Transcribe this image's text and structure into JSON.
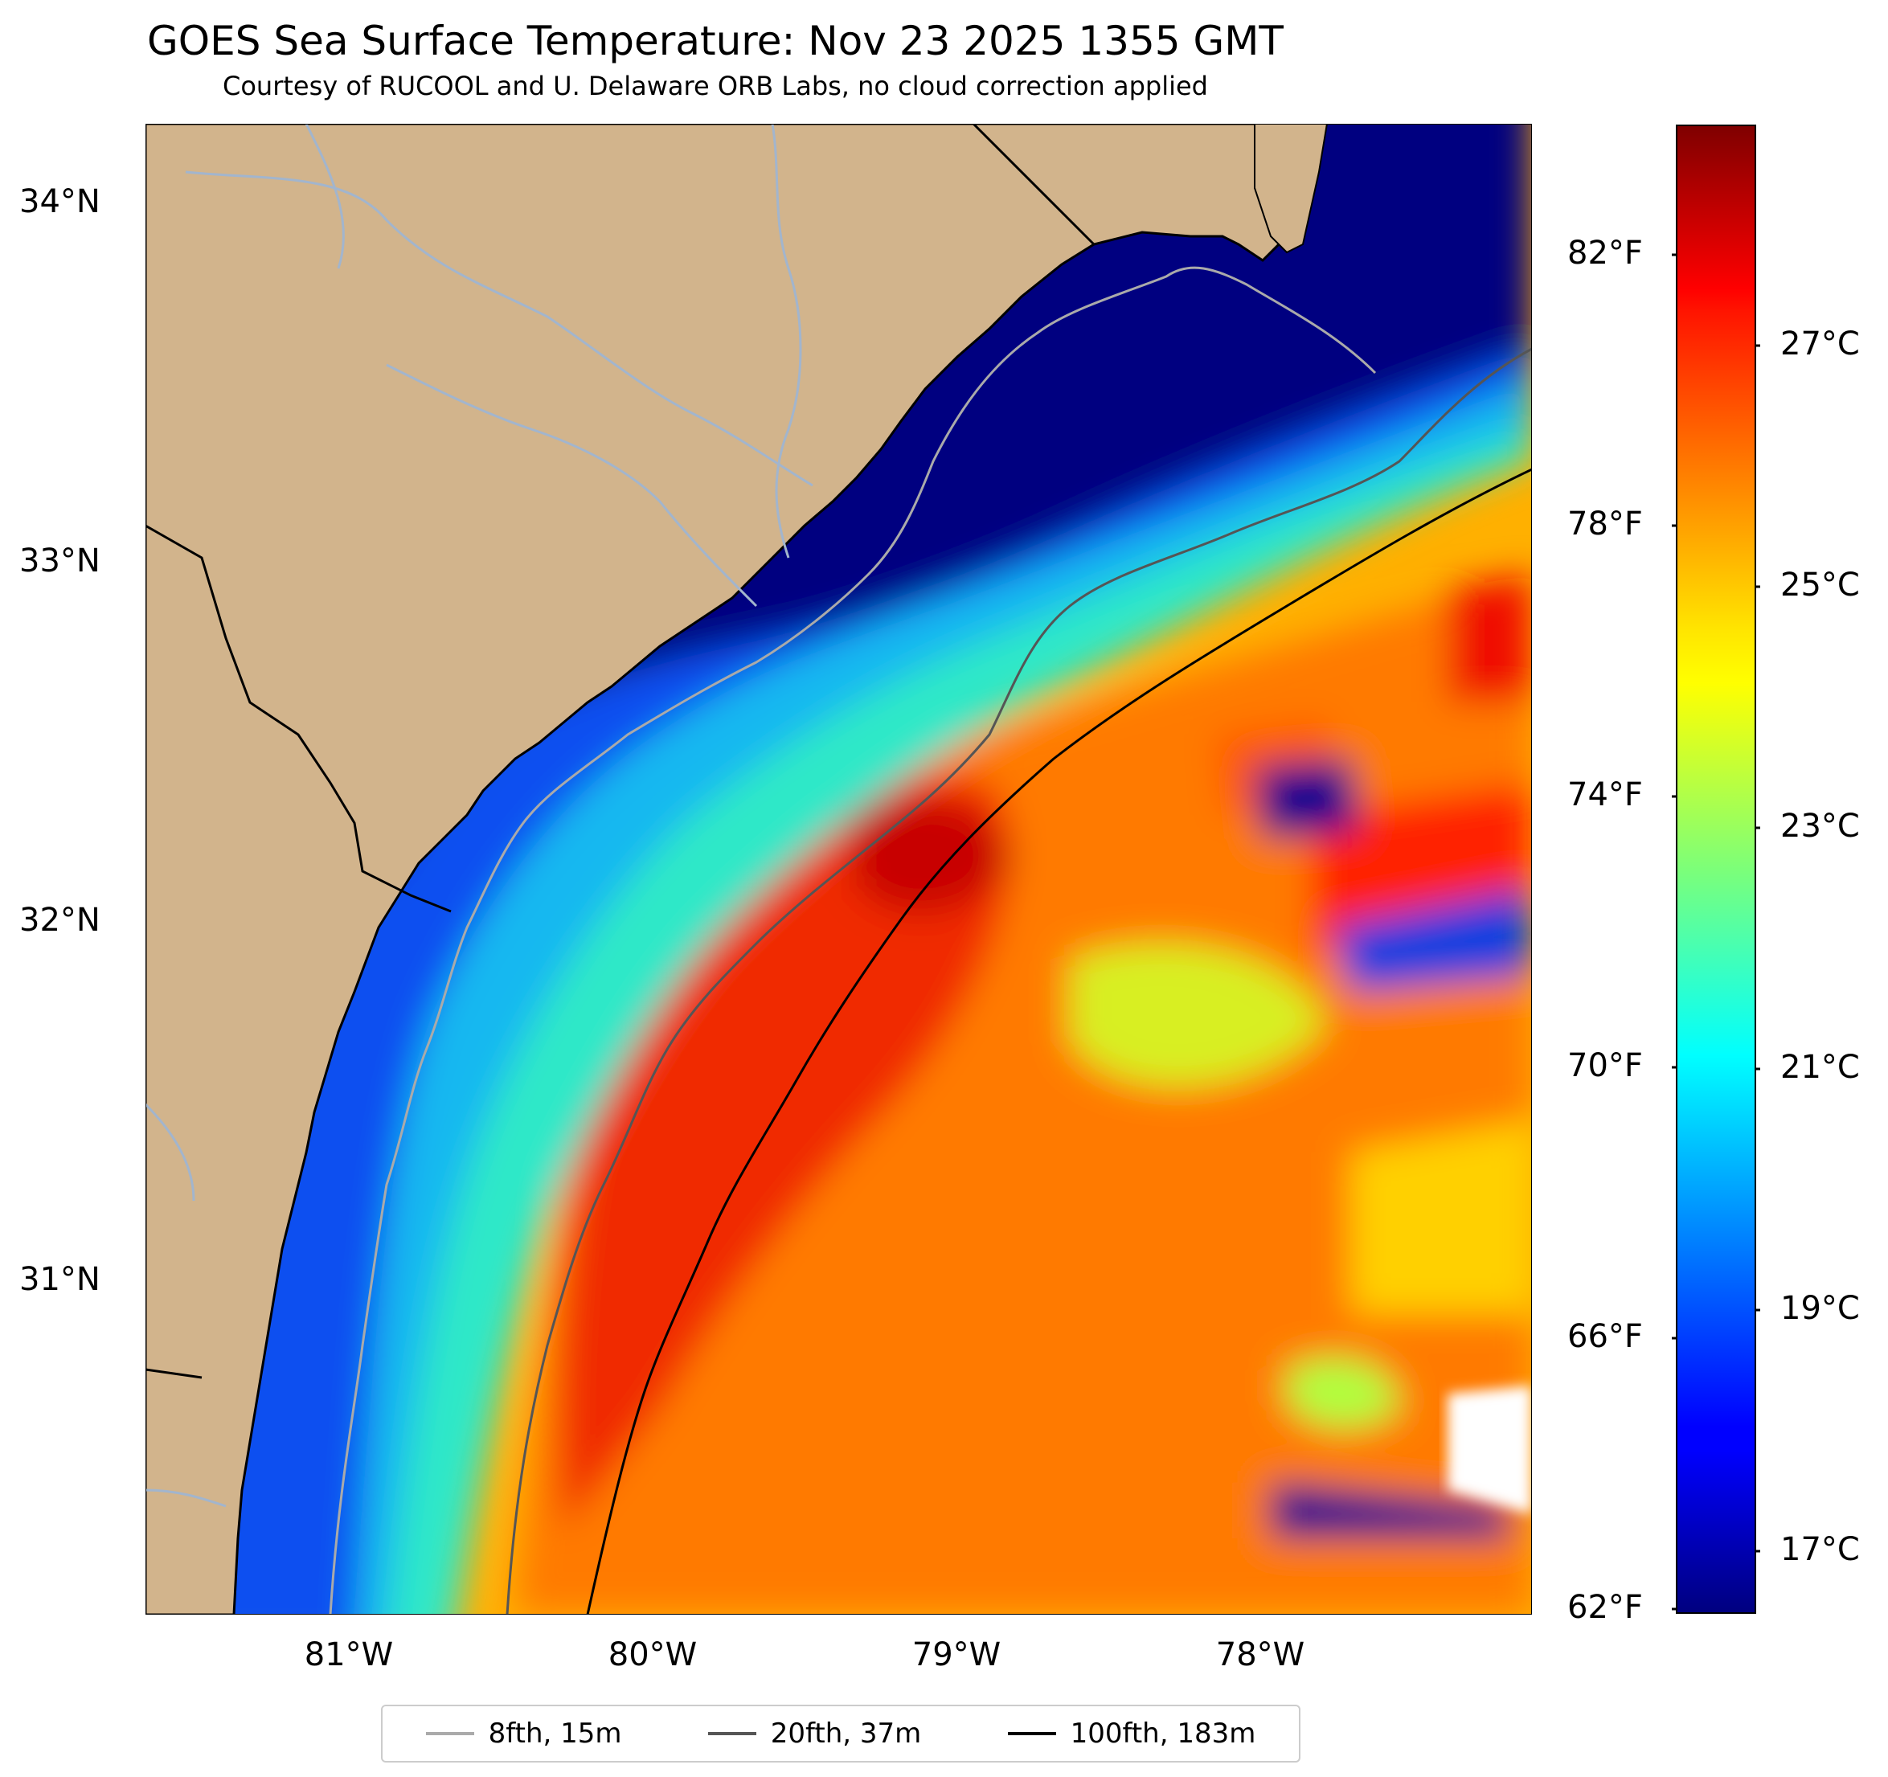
{
  "title": "GOES Sea Surface Temperature: Nov 23 2025 1355 GMT",
  "subtitle": "Courtesy of RUCOOL and U. Delaware ORB Labs, no cloud correction applied",
  "map": {
    "extent": {
      "lon_min": -81.67,
      "lon_max": -77.1,
      "lat_min": 30.1,
      "lat_max": 34.22
    },
    "lon_ticks": [
      "81°W",
      "80°W",
      "79°W",
      "78°W"
    ],
    "lat_ticks": [
      "34°N",
      "33°N",
      "32°N",
      "31°N"
    ],
    "colors": {
      "land": "#d2b48c",
      "rivers": "#a2b5cd",
      "cloud": "#ffffff",
      "state_border": "#000000"
    }
  },
  "colorbar": {
    "celsius_ticks": [
      "27°C",
      "25°C",
      "23°C",
      "21°C",
      "19°C",
      "17°C"
    ],
    "fahrenheit_ticks": [
      "82°F",
      "78°F",
      "74°F",
      "70°F",
      "66°F",
      "62°F"
    ],
    "range_c": [
      16.7,
      28.8
    ],
    "colormap": "jet"
  },
  "legend": [
    {
      "label": "8fth, 15m",
      "color": "#aaaaaa"
    },
    {
      "label": "20fth, 37m",
      "color": "#555555"
    },
    {
      "label": "100fth, 183m",
      "color": "#000000"
    }
  ]
}
